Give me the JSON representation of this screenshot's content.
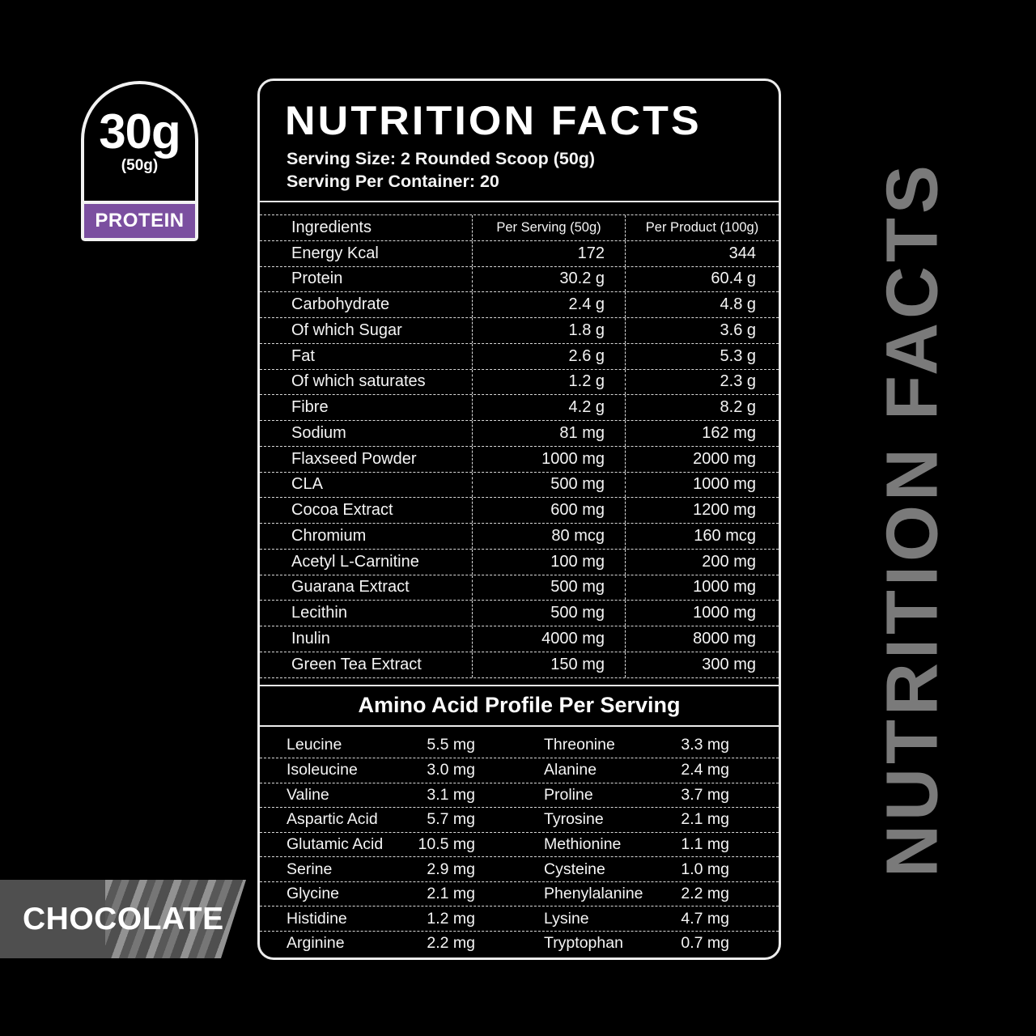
{
  "badge": {
    "amount": "30g",
    "per": "(50g)",
    "label": "PROTEIN",
    "accent_color": "#7b4fa0"
  },
  "panel": {
    "title": "NUTRITION FACTS",
    "serving_size": "Serving Size: 2 Rounded Scoop (50g)",
    "servings_per_container": "Serving Per Container: 20",
    "table": {
      "headers": [
        "Ingredients",
        "Per Serving (50g)",
        "Per Product (100g)"
      ],
      "rows": [
        [
          "Energy Kcal",
          "172",
          "344"
        ],
        [
          "Protein",
          "30.2 g",
          "60.4 g"
        ],
        [
          "Carbohydrate",
          "2.4 g",
          "4.8 g"
        ],
        [
          "Of which Sugar",
          "1.8 g",
          "3.6 g"
        ],
        [
          "Fat",
          "2.6 g",
          "5.3 g"
        ],
        [
          "Of which saturates",
          "1.2 g",
          "2.3 g"
        ],
        [
          "Fibre",
          "4.2 g",
          "8.2 g"
        ],
        [
          "Sodium",
          "81 mg",
          "162 mg"
        ],
        [
          "Flaxseed Powder",
          "1000 mg",
          "2000 mg"
        ],
        [
          "CLA",
          "500 mg",
          "1000 mg"
        ],
        [
          "Cocoa Extract",
          "600 mg",
          "1200 mg"
        ],
        [
          "Chromium",
          "80 mcg",
          "160 mcg"
        ],
        [
          "Acetyl L-Carnitine",
          "100 mg",
          "200 mg"
        ],
        [
          "Guarana Extract",
          "500 mg",
          "1000 mg"
        ],
        [
          "Lecithin",
          "500 mg",
          "1000 mg"
        ],
        [
          "Inulin",
          "4000 mg",
          "8000 mg"
        ],
        [
          "Green Tea Extract",
          "150 mg",
          "300 mg"
        ]
      ]
    },
    "amino": {
      "title": "Amino Acid Profile Per Serving",
      "rows": [
        [
          "Leucine",
          "5.5 mg",
          "Threonine",
          "3.3 mg"
        ],
        [
          "Isoleucine",
          "3.0 mg",
          "Alanine",
          "2.4 mg"
        ],
        [
          "Valine",
          "3.1 mg",
          "Proline",
          "3.7 mg"
        ],
        [
          "Aspartic Acid",
          "5.7 mg",
          "Tyrosine",
          "2.1 mg"
        ],
        [
          "Glutamic Acid",
          "10.5 mg",
          "Methionine",
          "1.1 mg"
        ],
        [
          "Serine",
          "2.9 mg",
          "Cysteine",
          "1.0 mg"
        ],
        [
          "Glycine",
          "2.1 mg",
          "Phenylalanine",
          "2.2 mg"
        ],
        [
          "Histidine",
          "1.2 mg",
          "Lysine",
          "4.7 mg"
        ],
        [
          "Arginine",
          "2.2 mg",
          "Tryptophan",
          "0.7 mg"
        ]
      ]
    }
  },
  "side_text": "NUTRITION FACTS",
  "flavor": "CHOCOLATE",
  "colors": {
    "background": "#000000",
    "panel_border": "#ececec",
    "text": "#f5f5f5",
    "purple_accent": "#7b4fa0",
    "side_text_gray": "#7a7a7a",
    "flavor_banner_gray": "#4f4f4f"
  }
}
